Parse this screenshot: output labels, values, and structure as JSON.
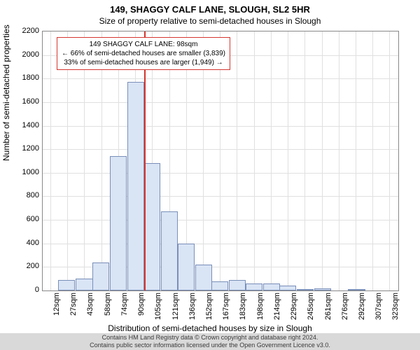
{
  "title_main": "149, SHAGGY CALF LANE, SLOUGH, SL2 5HR",
  "title_sub": "Size of property relative to semi-detached houses in Slough",
  "ylabel": "Number of semi-detached properties",
  "xlabel": "Distribution of semi-detached houses by size in Slough",
  "chart": {
    "type": "histogram",
    "background_color": "#ffffff",
    "grid_color": "#e0e0e0",
    "border_color": "#888888",
    "bar_fill": "#d9e4f5",
    "bar_stroke": "#7a8fb8",
    "marker_color": "#d4362f",
    "xlim": [
      5,
      330
    ],
    "ylim": [
      0,
      2200
    ],
    "ytick_step": 200,
    "xtick_start": 12,
    "xtick_step_approx": 15.5,
    "xtick_labels": [
      "12sqm",
      "27sqm",
      "43sqm",
      "58sqm",
      "74sqm",
      "90sqm",
      "105sqm",
      "121sqm",
      "136sqm",
      "152sqm",
      "167sqm",
      "183sqm",
      "198sqm",
      "214sqm",
      "229sqm",
      "245sqm",
      "261sqm",
      "276sqm",
      "292sqm",
      "307sqm",
      "323sqm"
    ],
    "bars": [
      {
        "x": 27,
        "v": 90
      },
      {
        "x": 43,
        "v": 100
      },
      {
        "x": 58,
        "v": 240
      },
      {
        "x": 74,
        "v": 1140
      },
      {
        "x": 90,
        "v": 1770
      },
      {
        "x": 105,
        "v": 1080
      },
      {
        "x": 121,
        "v": 670
      },
      {
        "x": 136,
        "v": 400
      },
      {
        "x": 152,
        "v": 220
      },
      {
        "x": 167,
        "v": 80
      },
      {
        "x": 183,
        "v": 90
      },
      {
        "x": 198,
        "v": 60
      },
      {
        "x": 214,
        "v": 60
      },
      {
        "x": 229,
        "v": 40
      },
      {
        "x": 245,
        "v": 10
      },
      {
        "x": 261,
        "v": 20
      },
      {
        "x": 292,
        "v": 5
      }
    ],
    "bar_width_units": 15.5,
    "marker_x": 98
  },
  "info_box": {
    "line1": "149 SHAGGY CALF LANE: 98sqm",
    "line2": "← 66% of semi-detached houses are smaller (3,839)",
    "line3": "33% of semi-detached houses are larger (1,949) →"
  },
  "footer": {
    "line1": "Contains HM Land Registry data © Crown copyright and database right 2024.",
    "line2": "Contains public sector information licensed under the Open Government Licence v3.0."
  }
}
